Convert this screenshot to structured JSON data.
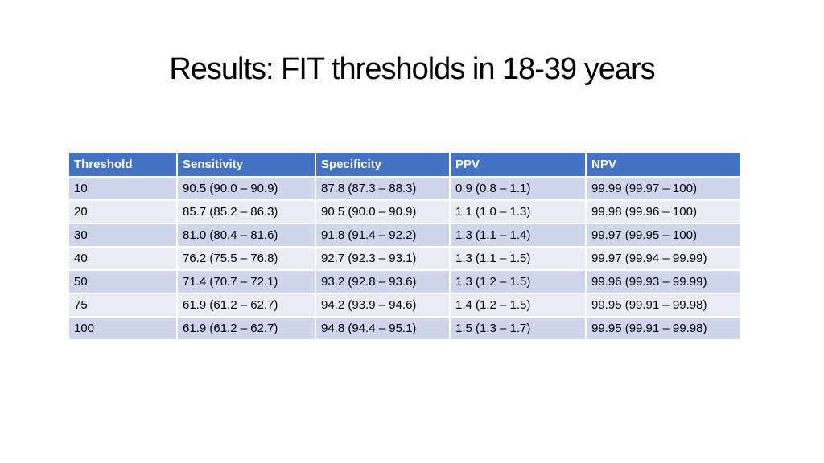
{
  "title": "Results: FIT thresholds in 18-39 years",
  "table": {
    "headers": [
      "Threshold",
      "Sensitivity",
      "Specificity",
      "PPV",
      "NPV"
    ],
    "rows": [
      [
        "10",
        "90.5 (90.0 – 90.9)",
        "87.8 (87.3 – 88.3)",
        "0.9 (0.8 – 1.1)",
        "99.99 (99.97 – 100)"
      ],
      [
        "20",
        "85.7 (85.2 – 86.3)",
        "90.5 (90.0 – 90.9)",
        "1.1 (1.0 – 1.3)",
        "99.98 (99.96 – 100)"
      ],
      [
        "30",
        "81.0 (80.4 – 81.6)",
        "91.8 (91.4 – 92.2)",
        "1.3 (1.1 – 1.4)",
        "99.97 (99.95 – 100)"
      ],
      [
        "40",
        "76.2 (75.5 – 76.8)",
        "92.7 (92.3 – 93.1)",
        "1.3 (1.1 – 1.5)",
        "99.97 (99.94 – 99.99)"
      ],
      [
        "50",
        "71.4 (70.7 – 72.1)",
        "93.2 (92.8 – 93.6)",
        "1.3 (1.2 – 1.5)",
        "99.96 (99.93 – 99.99)"
      ],
      [
        "75",
        "61.9 (61.2 – 62.7)",
        "94.2 (93.9 – 94.6)",
        "1.4 (1.2 – 1.5)",
        "99.95 (99.91 – 99.98)"
      ],
      [
        "100",
        "61.9 (61.2 – 62.7)",
        "94.8 (94.4 – 95.1)",
        "1.5 (1.3 – 1.7)",
        "99.95 (99.91 – 99.98)"
      ]
    ]
  },
  "colors": {
    "header_bg": "#4472c4",
    "row_odd_bg": "#cfd5ea",
    "row_even_bg": "#e9ebf5"
  }
}
